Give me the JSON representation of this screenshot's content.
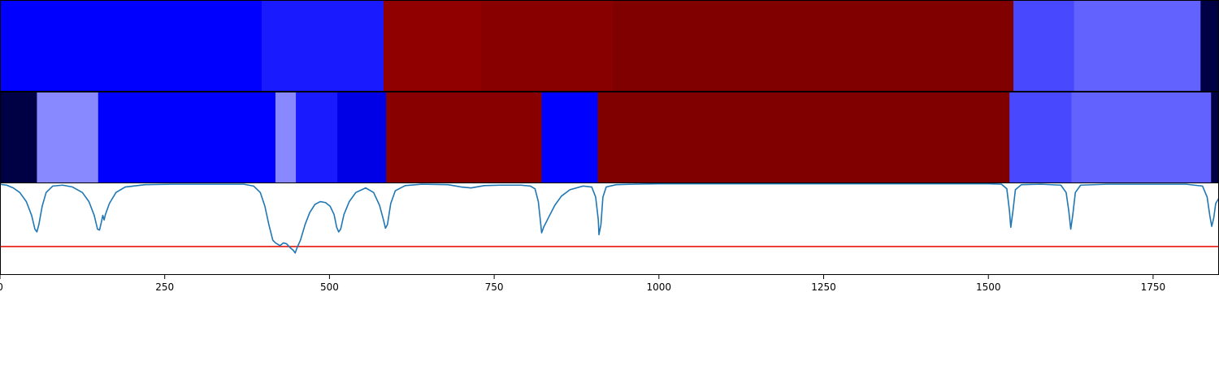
{
  "chart_data": {
    "type": "heatmap",
    "x_range": [
      0,
      1850
    ],
    "x_ticks": [
      0,
      250,
      500,
      750,
      1000,
      1250,
      1500,
      1750
    ],
    "x_tick_labels": [
      "0",
      "250",
      "500",
      "750",
      "1000",
      "1250",
      "1500",
      "1750"
    ],
    "segment_rows": [
      {
        "segments": [
          {
            "start": 0,
            "end": 397,
            "color": "#0000ff"
          },
          {
            "start": 397,
            "end": 582,
            "color": "#1a1aff"
          },
          {
            "start": 582,
            "end": 730,
            "color": "#900000"
          },
          {
            "start": 730,
            "end": 930,
            "color": "#880000"
          },
          {
            "start": 930,
            "end": 1538,
            "color": "#800000"
          },
          {
            "start": 1538,
            "end": 1630,
            "color": "#4848ff"
          },
          {
            "start": 1630,
            "end": 1822,
            "color": "#6262ff"
          },
          {
            "start": 1822,
            "end": 1850,
            "color": "#000044"
          }
        ]
      },
      {
        "segments": [
          {
            "start": 0,
            "end": 56,
            "color": "#000044"
          },
          {
            "start": 56,
            "end": 149,
            "color": "#8888ff"
          },
          {
            "start": 149,
            "end": 418,
            "color": "#0000ff"
          },
          {
            "start": 418,
            "end": 449,
            "color": "#8888ff"
          },
          {
            "start": 449,
            "end": 512,
            "color": "#1a1aff"
          },
          {
            "start": 512,
            "end": 586,
            "color": "#0000e6"
          },
          {
            "start": 586,
            "end": 822,
            "color": "#880000"
          },
          {
            "start": 822,
            "end": 907,
            "color": "#0000ff"
          },
          {
            "start": 907,
            "end": 1532,
            "color": "#800000"
          },
          {
            "start": 1532,
            "end": 1626,
            "color": "#4848ff"
          },
          {
            "start": 1626,
            "end": 1838,
            "color": "#6262ff"
          },
          {
            "start": 1838,
            "end": 1850,
            "color": "#000044"
          }
        ]
      }
    ],
    "curve": {
      "color": "#1f77b4",
      "y_range": [
        0,
        1
      ],
      "points": [
        [
          0,
          0.99
        ],
        [
          10,
          0.98
        ],
        [
          20,
          0.95
        ],
        [
          30,
          0.9
        ],
        [
          40,
          0.8
        ],
        [
          48,
          0.65
        ],
        [
          53,
          0.5
        ],
        [
          56,
          0.47
        ],
        [
          59,
          0.55
        ],
        [
          64,
          0.75
        ],
        [
          70,
          0.9
        ],
        [
          80,
          0.97
        ],
        [
          95,
          0.98
        ],
        [
          110,
          0.96
        ],
        [
          125,
          0.9
        ],
        [
          135,
          0.8
        ],
        [
          143,
          0.65
        ],
        [
          148,
          0.5
        ],
        [
          151,
          0.49
        ],
        [
          154,
          0.58
        ],
        [
          156,
          0.65
        ],
        [
          158,
          0.6
        ],
        [
          160,
          0.66
        ],
        [
          166,
          0.78
        ],
        [
          176,
          0.9
        ],
        [
          190,
          0.96
        ],
        [
          220,
          0.985
        ],
        [
          260,
          0.99
        ],
        [
          300,
          0.99
        ],
        [
          340,
          0.99
        ],
        [
          370,
          0.99
        ],
        [
          385,
          0.97
        ],
        [
          395,
          0.9
        ],
        [
          402,
          0.75
        ],
        [
          408,
          0.55
        ],
        [
          414,
          0.38
        ],
        [
          418,
          0.35
        ],
        [
          425,
          0.32
        ],
        [
          430,
          0.35
        ],
        [
          435,
          0.34
        ],
        [
          440,
          0.3
        ],
        [
          445,
          0.27
        ],
        [
          448,
          0.24
        ],
        [
          451,
          0.3
        ],
        [
          456,
          0.38
        ],
        [
          463,
          0.55
        ],
        [
          470,
          0.68
        ],
        [
          478,
          0.77
        ],
        [
          486,
          0.8
        ],
        [
          494,
          0.79
        ],
        [
          501,
          0.75
        ],
        [
          507,
          0.66
        ],
        [
          511,
          0.52
        ],
        [
          514,
          0.47
        ],
        [
          517,
          0.5
        ],
        [
          522,
          0.66
        ],
        [
          530,
          0.8
        ],
        [
          540,
          0.9
        ],
        [
          555,
          0.95
        ],
        [
          567,
          0.9
        ],
        [
          576,
          0.76
        ],
        [
          582,
          0.6
        ],
        [
          585,
          0.51
        ],
        [
          588,
          0.55
        ],
        [
          593,
          0.78
        ],
        [
          600,
          0.92
        ],
        [
          615,
          0.975
        ],
        [
          640,
          0.99
        ],
        [
          680,
          0.985
        ],
        [
          700,
          0.96
        ],
        [
          715,
          0.95
        ],
        [
          735,
          0.975
        ],
        [
          760,
          0.98
        ],
        [
          790,
          0.98
        ],
        [
          805,
          0.97
        ],
        [
          812,
          0.94
        ],
        [
          817,
          0.8
        ],
        [
          820,
          0.6
        ],
        [
          822,
          0.46
        ],
        [
          825,
          0.52
        ],
        [
          832,
          0.62
        ],
        [
          842,
          0.76
        ],
        [
          852,
          0.86
        ],
        [
          865,
          0.93
        ],
        [
          885,
          0.97
        ],
        [
          898,
          0.96
        ],
        [
          904,
          0.85
        ],
        [
          908,
          0.6
        ],
        [
          909,
          0.44
        ],
        [
          912,
          0.55
        ],
        [
          915,
          0.85
        ],
        [
          920,
          0.96
        ],
        [
          935,
          0.985
        ],
        [
          960,
          0.99
        ],
        [
          1000,
          0.995
        ],
        [
          1100,
          0.995
        ],
        [
          1200,
          0.995
        ],
        [
          1300,
          0.995
        ],
        [
          1400,
          0.995
        ],
        [
          1500,
          0.995
        ],
        [
          1520,
          0.99
        ],
        [
          1528,
          0.94
        ],
        [
          1532,
          0.7
        ],
        [
          1534,
          0.52
        ],
        [
          1537,
          0.68
        ],
        [
          1541,
          0.93
        ],
        [
          1550,
          0.985
        ],
        [
          1580,
          0.99
        ],
        [
          1610,
          0.98
        ],
        [
          1618,
          0.9
        ],
        [
          1622,
          0.7
        ],
        [
          1625,
          0.5
        ],
        [
          1628,
          0.65
        ],
        [
          1632,
          0.9
        ],
        [
          1640,
          0.98
        ],
        [
          1680,
          0.99
        ],
        [
          1750,
          0.99
        ],
        [
          1800,
          0.99
        ],
        [
          1825,
          0.97
        ],
        [
          1832,
          0.85
        ],
        [
          1836,
          0.65
        ],
        [
          1839,
          0.53
        ],
        [
          1842,
          0.62
        ],
        [
          1845,
          0.78
        ],
        [
          1850,
          0.84
        ]
      ]
    },
    "threshold": {
      "value": 0.31,
      "color": "#e8140a"
    }
  }
}
